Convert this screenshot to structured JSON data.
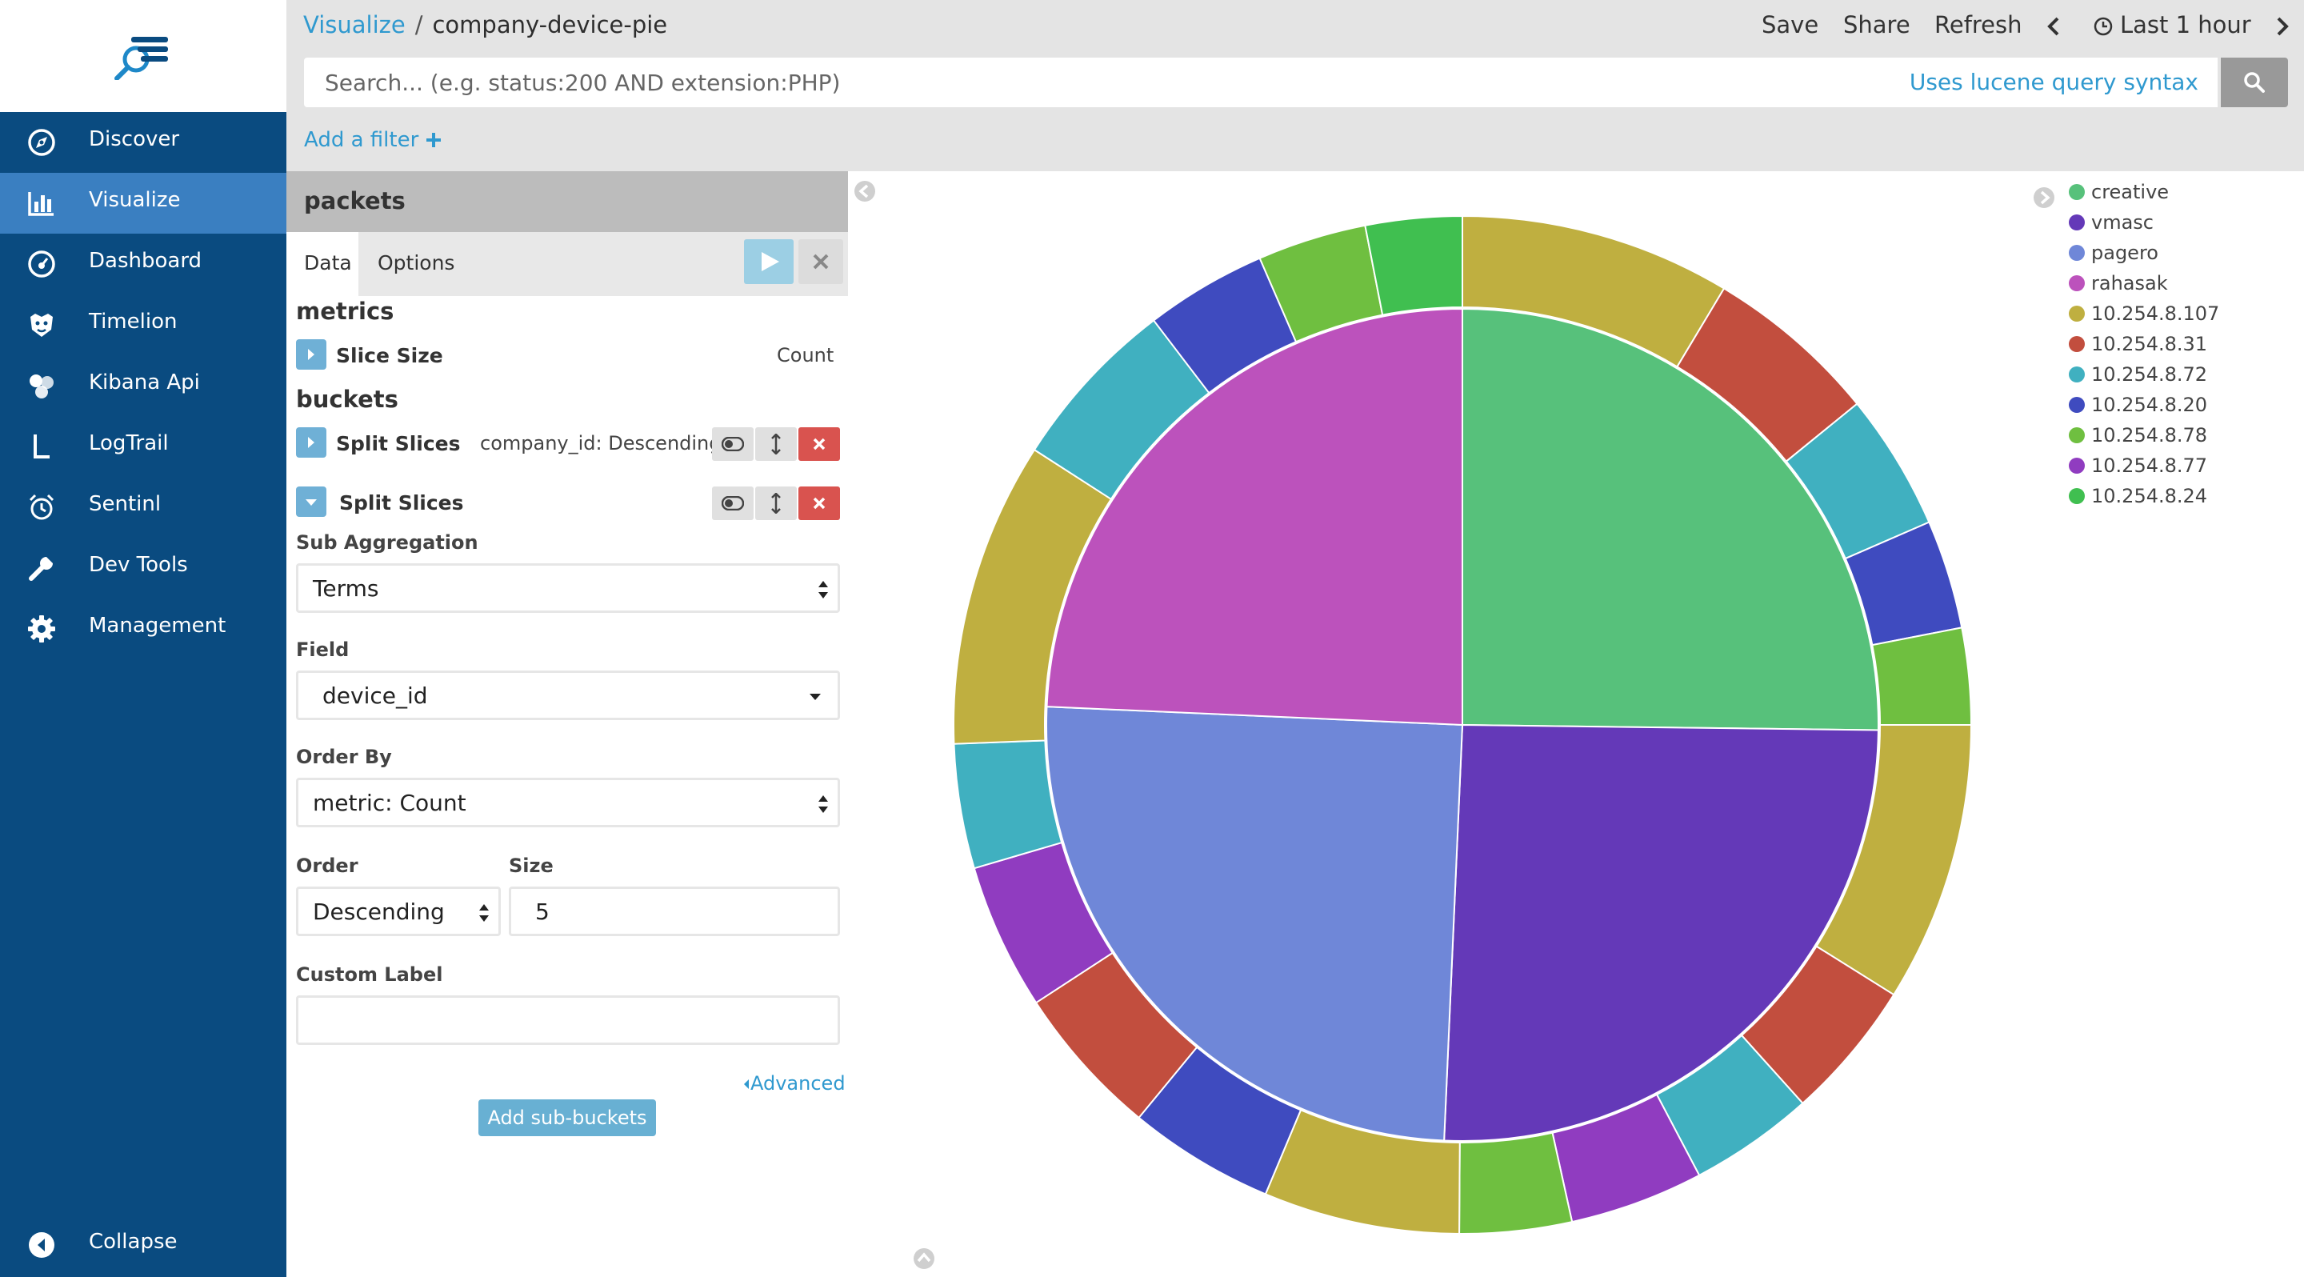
{
  "sidebar": {
    "items": [
      {
        "label": "Discover",
        "icon": "compass-icon"
      },
      {
        "label": "Visualize",
        "icon": "bar-chart-icon",
        "active": true
      },
      {
        "label": "Dashboard",
        "icon": "gauge-icon"
      },
      {
        "label": "Timelion",
        "icon": "timelion-icon"
      },
      {
        "label": "Kibana Api",
        "icon": "hexagons-icon"
      },
      {
        "label": "LogTrail",
        "icon": "logtrail-icon"
      },
      {
        "label": "Sentinl",
        "icon": "alarm-clock-icon"
      },
      {
        "label": "Dev Tools",
        "icon": "wrench-icon"
      },
      {
        "label": "Management",
        "icon": "gear-icon"
      }
    ],
    "collapse_label": "Collapse"
  },
  "header": {
    "breadcrumb_root": "Visualize",
    "breadcrumb_sep": "/",
    "breadcrumb_current": "company-device-pie",
    "save_label": "Save",
    "share_label": "Share",
    "refresh_label": "Refresh",
    "time_label": "Last 1 hour"
  },
  "search": {
    "placeholder": "Search... (e.g. status:200 AND extension:PHP)",
    "value": "",
    "syntax_link": "Uses lucene query syntax"
  },
  "filter": {
    "add_label": "Add a filter"
  },
  "editor": {
    "index_pattern": "packets",
    "tabs": [
      "Data",
      "Options"
    ],
    "metrics_heading": "metrics",
    "metric": {
      "title": "Slice Size",
      "desc": "Count"
    },
    "buckets_heading": "buckets",
    "bucket1": {
      "title": "Split Slices",
      "desc": "company_id: Descending"
    },
    "bucket2": {
      "title": "Split Slices"
    },
    "sub_aggregation": {
      "label": "Sub Aggregation",
      "value": "Terms"
    },
    "field": {
      "label": "Field",
      "value": "device_id"
    },
    "order_by": {
      "label": "Order By",
      "value": "metric: Count"
    },
    "order": {
      "label": "Order",
      "value": "Descending"
    },
    "size": {
      "label": "Size",
      "value": "5"
    },
    "custom_label": {
      "label": "Custom Label",
      "value": ""
    },
    "advanced_label": "Advanced",
    "add_sub_buckets_label": "Add sub-buckets"
  },
  "colors": {
    "sidebar_bg": "#0a4b80",
    "sidebar_active": "#3a7fc1",
    "link": "#2f99cf",
    "danger": "#d9534f"
  },
  "chart_data": {
    "type": "pie",
    "donut_rings": 2,
    "legend": [
      {
        "label": "creative",
        "color": "#57c17b"
      },
      {
        "label": "vmasc",
        "color": "#6439b8"
      },
      {
        "label": "pagero",
        "color": "#6f87d8"
      },
      {
        "label": "rahasak",
        "color": "#bc52bc"
      },
      {
        "label": "10.254.8.107",
        "color": "#bfaf40"
      },
      {
        "label": "10.254.8.31",
        "color": "#c24e3e"
      },
      {
        "label": "10.254.8.72",
        "color": "#40b0c0"
      },
      {
        "label": "10.254.8.20",
        "color": "#3f4bbf"
      },
      {
        "label": "10.254.8.78",
        "color": "#6fbf40"
      },
      {
        "label": "10.254.8.77",
        "color": "#903cc0"
      },
      {
        "label": "10.254.8.24",
        "color": "#40bf50"
      }
    ],
    "inner": [
      {
        "label": "creative",
        "value": 25.2
      },
      {
        "label": "vmasc",
        "value": 25.5
      },
      {
        "label": "pagero",
        "value": 25.0
      },
      {
        "label": "rahasak",
        "value": 24.3
      }
    ],
    "outer": [
      {
        "parent": "creative",
        "label": "10.254.8.107",
        "value": 8.7
      },
      {
        "parent": "creative",
        "label": "10.254.8.31",
        "value": 5.6
      },
      {
        "parent": "creative",
        "label": "10.254.8.72",
        "value": 4.4
      },
      {
        "parent": "creative",
        "label": "10.254.8.20",
        "value": 3.5
      },
      {
        "parent": "creative",
        "label": "10.254.8.78",
        "value": 3.1
      },
      {
        "parent": "vmasc",
        "label": "10.254.8.107",
        "value": 9.0
      },
      {
        "parent": "vmasc",
        "label": "10.254.8.31",
        "value": 4.5
      },
      {
        "parent": "vmasc",
        "label": "10.254.8.72",
        "value": 4.0
      },
      {
        "parent": "vmasc",
        "label": "10.254.8.77",
        "value": 4.3
      },
      {
        "parent": "vmasc",
        "label": "10.254.8.78",
        "value": 3.6
      },
      {
        "parent": "pagero",
        "label": "10.254.8.107",
        "value": 6.3
      },
      {
        "parent": "pagero",
        "label": "10.254.8.20",
        "value": 4.7
      },
      {
        "parent": "pagero",
        "label": "10.254.8.31",
        "value": 4.9
      },
      {
        "parent": "pagero",
        "label": "10.254.8.77",
        "value": 4.7
      },
      {
        "parent": "pagero",
        "label": "10.254.8.72",
        "value": 4.0
      },
      {
        "parent": "rahasak",
        "label": "10.254.8.107",
        "value": 9.8
      },
      {
        "parent": "rahasak",
        "label": "10.254.8.72",
        "value": 5.6
      },
      {
        "parent": "rahasak",
        "label": "10.254.8.20",
        "value": 3.9
      },
      {
        "parent": "rahasak",
        "label": "10.254.8.78",
        "value": 3.5
      },
      {
        "parent": "rahasak",
        "label": "10.254.8.24",
        "value": 3.1
      }
    ]
  }
}
